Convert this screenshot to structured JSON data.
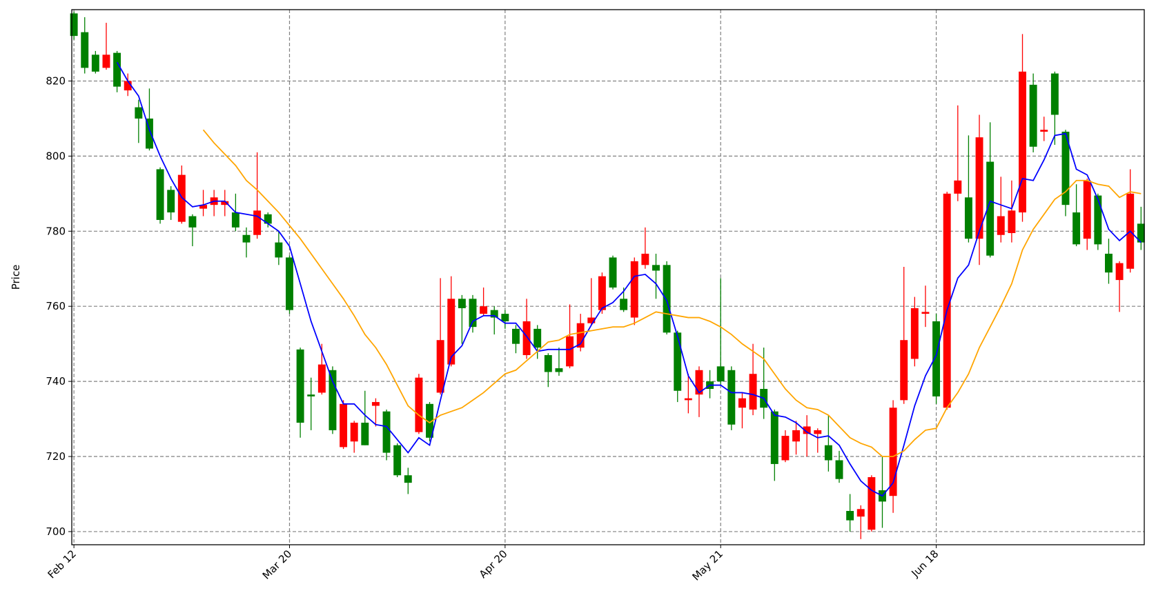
{
  "chart_data": {
    "type": "candlestick",
    "ylabel": "Price",
    "categories": [
      "Feb 12",
      null,
      null,
      null,
      null,
      null,
      null,
      null,
      null,
      null,
      null,
      null,
      null,
      null,
      null,
      null,
      null,
      null,
      null,
      null,
      "Mar 20",
      null,
      null,
      null,
      null,
      null,
      null,
      null,
      null,
      null,
      null,
      null,
      null,
      null,
      null,
      null,
      null,
      null,
      null,
      null,
      "Apr 20",
      null,
      null,
      null,
      null,
      null,
      null,
      null,
      null,
      null,
      null,
      null,
      null,
      null,
      null,
      null,
      null,
      null,
      null,
      null,
      "May 21",
      null,
      null,
      null,
      null,
      null,
      null,
      null,
      null,
      null,
      null,
      null,
      null,
      null,
      null,
      null,
      null,
      null,
      null,
      null,
      "Jun 18",
      null,
      null,
      null,
      null,
      null,
      null,
      null,
      null,
      null,
      null,
      null,
      null,
      null,
      null,
      null,
      null,
      null,
      null,
      null
    ],
    "open": [
      838,
      833,
      827,
      823.5,
      827.5,
      817.5,
      813,
      810,
      796.5,
      791,
      782.5,
      784,
      786,
      787,
      787,
      785,
      779,
      779,
      784.5,
      777,
      773,
      748.5,
      736.5,
      737,
      743,
      722.5,
      724,
      729,
      733.5,
      732,
      723,
      715,
      726.5,
      734,
      737,
      744.5,
      762,
      762,
      758,
      759,
      758,
      754,
      747,
      754,
      747,
      743.5,
      744,
      749,
      755.5,
      759,
      773,
      762,
      757,
      771,
      771,
      771,
      753,
      735,
      736.5,
      740,
      744,
      743,
      733,
      732.5,
      738,
      732,
      719,
      724,
      726,
      726,
      723,
      719,
      705.5,
      704,
      700.5,
      711,
      709.5,
      735,
      746,
      758,
      756,
      733,
      790,
      789,
      778,
      798.5,
      779,
      779.5,
      785,
      819,
      806.5,
      822,
      806.5,
      785,
      778,
      789.5,
      774,
      767,
      770,
      782
    ],
    "high": [
      838.5,
      837,
      828,
      835.5,
      828,
      822,
      815,
      818,
      797,
      792,
      797.5,
      784.5,
      791,
      791,
      791,
      790,
      781,
      801,
      785,
      780,
      773.5,
      749,
      741,
      750,
      744,
      735,
      729.5,
      737.5,
      735.5,
      732.5,
      723.5,
      717,
      742,
      734.5,
      767.5,
      768,
      763,
      763,
      765,
      760,
      759,
      755,
      762,
      755,
      747.5,
      749,
      760.5,
      758,
      767.5,
      769,
      773.5,
      765,
      773,
      781,
      774,
      772,
      753.5,
      742,
      744,
      743,
      767.5,
      744,
      737,
      750,
      749,
      732.5,
      727,
      729.5,
      731,
      727.5,
      731,
      721.5,
      710,
      707,
      715,
      720,
      735,
      770.5,
      762.5,
      765.5,
      758,
      790.5,
      813.5,
      805.5,
      811,
      809,
      794.5,
      793.5,
      832.5,
      822,
      810.5,
      822.5,
      807,
      792.5,
      794,
      790,
      778,
      772,
      796.5,
      786.5
    ],
    "low": [
      831,
      822,
      822,
      823,
      817,
      816,
      803.5,
      801.5,
      782,
      783,
      782,
      776,
      784,
      784,
      784,
      780,
      773,
      778,
      781,
      771,
      758,
      725,
      727,
      736.5,
      726,
      722,
      721,
      723,
      728,
      719,
      714.5,
      710,
      726,
      724,
      736.5,
      744,
      750,
      753,
      757.5,
      752.5,
      754,
      747.5,
      746,
      746,
      738.5,
      741.5,
      743.5,
      748,
      755,
      758,
      764.5,
      758.5,
      755,
      770,
      762,
      752.5,
      734.5,
      731.5,
      730.5,
      735.5,
      739,
      727,
      727.5,
      731,
      730,
      713.5,
      718.5,
      720.5,
      720,
      721,
      716,
      713,
      700,
      698,
      700,
      701,
      705,
      734,
      744,
      754.5,
      734,
      732.5,
      788,
      777,
      771,
      773,
      777,
      777,
      782.5,
      801,
      804,
      803,
      784,
      776,
      775,
      775,
      766,
      758.5,
      769,
      775
    ],
    "close": [
      832,
      823.5,
      822.5,
      827,
      818.5,
      820,
      810,
      802,
      783,
      785,
      795,
      781,
      787,
      789,
      788,
      781,
      777,
      785.5,
      782,
      773,
      759,
      729,
      736,
      744.5,
      727,
      734,
      729,
      723,
      734.5,
      721,
      715,
      713,
      741,
      725,
      751,
      762,
      759.5,
      754.5,
      760,
      757,
      756,
      750,
      756,
      749,
      742.5,
      742.5,
      752,
      755.5,
      757,
      768,
      765,
      759,
      772,
      774,
      769.5,
      753,
      737.5,
      735.5,
      743,
      738,
      740,
      728.5,
      735.5,
      742,
      733,
      718,
      725.5,
      727,
      728,
      727,
      719,
      714,
      703,
      706,
      714.5,
      708,
      733,
      751,
      759.5,
      758.5,
      736,
      790,
      793.5,
      778,
      805,
      773.5,
      784,
      785.5,
      822.5,
      802.5,
      807,
      811,
      787,
      776.5,
      793.5,
      776.5,
      769,
      771.5,
      790,
      777
    ],
    "up_color": "red",
    "down_color": "green",
    "lines": [
      {
        "color": "blue",
        "values": [
          null,
          null,
          null,
          null,
          825,
          820,
          816,
          807,
          800,
          794,
          789,
          786.5,
          787,
          788,
          788,
          785,
          784.5,
          784,
          782,
          780,
          776,
          766,
          756,
          748,
          740,
          734,
          734,
          731,
          728.5,
          728,
          724.5,
          721,
          725,
          723,
          735,
          746.5,
          749.5,
          756,
          757.5,
          757.5,
          755.5,
          755.5,
          752,
          748,
          748.5,
          748.5,
          748.5,
          750,
          755,
          759.5,
          761,
          764,
          768,
          768.5,
          766,
          761.5,
          752,
          741.5,
          737,
          739,
          739,
          737,
          737,
          736.5,
          735.5,
          731,
          730.5,
          729,
          726.5,
          725,
          725.5,
          723,
          718,
          713.5,
          711,
          709.5,
          713,
          723,
          733.5,
          741.5,
          747,
          759,
          767.5,
          771,
          780,
          788,
          787,
          786,
          794,
          793.5,
          799,
          805.5,
          806,
          796.5,
          795,
          788.5,
          780.5,
          777.5,
          780,
          777
        ]
      },
      {
        "color": "orange",
        "values": [
          null,
          null,
          null,
          null,
          null,
          null,
          null,
          null,
          null,
          null,
          null,
          null,
          807,
          803.5,
          800.5,
          797.5,
          793.5,
          791,
          788,
          785,
          781.5,
          778,
          774,
          770,
          766,
          762,
          757.5,
          752.5,
          749,
          744.5,
          739,
          733.5,
          731,
          729,
          731,
          732,
          733,
          735,
          737,
          739.5,
          742,
          743,
          745.5,
          748,
          750.5,
          751,
          752.5,
          753,
          753.5,
          754,
          754.5,
          754.5,
          755.5,
          757,
          758.5,
          758,
          757.5,
          757,
          757,
          756,
          754.5,
          752.5,
          750,
          748,
          746,
          742,
          738,
          735,
          733,
          732.5,
          731,
          728,
          725,
          723.5,
          722.5,
          720,
          720,
          721.5,
          724.5,
          727,
          727.5,
          733,
          737,
          742,
          749,
          754.5,
          760,
          766,
          775,
          780.5,
          784.5,
          788.5,
          790.5,
          793.5,
          793.5,
          792.5,
          792,
          789,
          790.5,
          790
        ]
      }
    ],
    "xlim": [
      -0.2,
      99.3
    ],
    "ylim": [
      696.5,
      839
    ],
    "yticks": [
      700,
      720,
      740,
      760,
      780,
      800,
      820
    ],
    "grid": true
  }
}
